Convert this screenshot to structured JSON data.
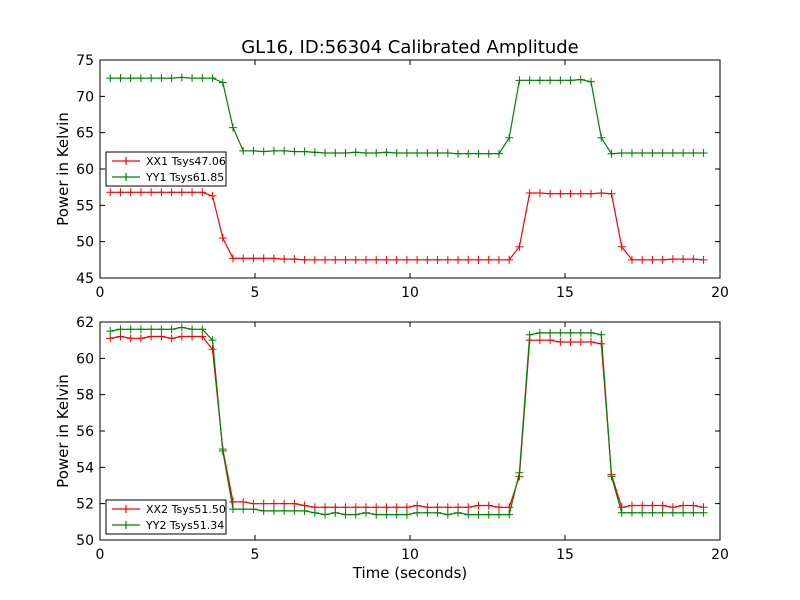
{
  "title": "GL16, ID:56304 Calibrated Amplitude",
  "chart_data": [
    {
      "type": "line",
      "ylabel": "Power in Kelvin",
      "xlabel": "",
      "xlim": [
        0,
        20
      ],
      "ylim": [
        45,
        75
      ],
      "xticks": [
        0,
        5,
        10,
        15,
        20
      ],
      "yticks": [
        45,
        50,
        55,
        60,
        65,
        70,
        75
      ],
      "legend_position": "center-left",
      "grid": false,
      "x": [
        0.33,
        0.66,
        0.99,
        1.32,
        1.65,
        1.98,
        2.31,
        2.64,
        2.97,
        3.3,
        3.63,
        3.96,
        4.29,
        4.62,
        4.95,
        5.28,
        5.61,
        5.94,
        6.27,
        6.6,
        6.93,
        7.26,
        7.59,
        7.92,
        8.25,
        8.58,
        8.91,
        9.24,
        9.57,
        9.9,
        10.23,
        10.56,
        10.89,
        11.22,
        11.55,
        11.88,
        12.21,
        12.54,
        12.87,
        13.2,
        13.53,
        13.86,
        14.19,
        14.52,
        14.85,
        15.18,
        15.51,
        15.84,
        16.17,
        16.5,
        16.83,
        17.16,
        17.49,
        17.82,
        18.15,
        18.48,
        18.81,
        19.14,
        19.47
      ],
      "series": [
        {
          "name": "XX1 Tsys47.06",
          "color": "#ff0000",
          "values": [
            56.8,
            56.8,
            56.8,
            56.8,
            56.8,
            56.8,
            56.8,
            56.8,
            56.8,
            56.8,
            56.3,
            50.5,
            47.7,
            47.7,
            47.7,
            47.7,
            47.7,
            47.6,
            47.6,
            47.5,
            47.5,
            47.5,
            47.5,
            47.5,
            47.5,
            47.5,
            47.5,
            47.5,
            47.5,
            47.5,
            47.5,
            47.5,
            47.5,
            47.5,
            47.5,
            47.5,
            47.5,
            47.5,
            47.5,
            47.5,
            49.3,
            56.7,
            56.7,
            56.6,
            56.6,
            56.6,
            56.6,
            56.6,
            56.7,
            56.6,
            49.3,
            47.5,
            47.5,
            47.5,
            47.5,
            47.6,
            47.6,
            47.6,
            47.5
          ]
        },
        {
          "name": "YY1 Tsys61.85",
          "color": "#008000",
          "values": [
            72.5,
            72.5,
            72.5,
            72.5,
            72.5,
            72.5,
            72.5,
            72.6,
            72.5,
            72.5,
            72.5,
            71.9,
            65.7,
            62.5,
            62.5,
            62.4,
            62.5,
            62.5,
            62.4,
            62.4,
            62.3,
            62.2,
            62.2,
            62.2,
            62.3,
            62.2,
            62.2,
            62.3,
            62.2,
            62.2,
            62.2,
            62.2,
            62.2,
            62.2,
            62.1,
            62.1,
            62.1,
            62.1,
            62.1,
            64.3,
            72.2,
            72.2,
            72.2,
            72.2,
            72.2,
            72.2,
            72.3,
            72.0,
            64.3,
            62.1,
            62.2,
            62.2,
            62.2,
            62.2,
            62.2,
            62.2,
            62.2,
            62.2,
            62.2
          ]
        }
      ]
    },
    {
      "type": "line",
      "ylabel": "Power in Kelvin",
      "xlabel": "Time (seconds)",
      "xlim": [
        0,
        20
      ],
      "ylim": [
        50,
        62
      ],
      "xticks": [
        0,
        5,
        10,
        15,
        20
      ],
      "yticks": [
        50,
        52,
        54,
        56,
        58,
        60,
        62
      ],
      "legend_position": "lower-left",
      "grid": false,
      "x": [
        0.33,
        0.66,
        0.99,
        1.32,
        1.65,
        1.98,
        2.31,
        2.64,
        2.97,
        3.3,
        3.63,
        3.96,
        4.29,
        4.62,
        4.95,
        5.28,
        5.61,
        5.94,
        6.27,
        6.6,
        6.93,
        7.26,
        7.59,
        7.92,
        8.25,
        8.58,
        8.91,
        9.24,
        9.57,
        9.9,
        10.23,
        10.56,
        10.89,
        11.22,
        11.55,
        11.88,
        12.21,
        12.54,
        12.87,
        13.2,
        13.53,
        13.86,
        14.19,
        14.52,
        14.85,
        15.18,
        15.51,
        15.84,
        16.17,
        16.5,
        16.83,
        17.16,
        17.49,
        17.82,
        18.15,
        18.48,
        18.81,
        19.14,
        19.47
      ],
      "series": [
        {
          "name": "XX2 Tsys51.50",
          "color": "#ff0000",
          "values": [
            61.1,
            61.2,
            61.1,
            61.1,
            61.2,
            61.2,
            61.1,
            61.2,
            61.2,
            61.2,
            60.5,
            55.0,
            52.1,
            52.1,
            52.0,
            52.0,
            52.0,
            52.0,
            52.0,
            51.9,
            51.8,
            51.8,
            51.8,
            51.8,
            51.8,
            51.8,
            51.8,
            51.8,
            51.8,
            51.8,
            51.9,
            51.8,
            51.8,
            51.8,
            51.8,
            51.8,
            51.9,
            51.9,
            51.8,
            51.8,
            53.5,
            61.0,
            61.0,
            61.0,
            60.9,
            60.9,
            60.9,
            60.9,
            60.8,
            53.6,
            51.8,
            51.9,
            51.9,
            51.9,
            51.9,
            51.8,
            51.9,
            51.9,
            51.8
          ]
        },
        {
          "name": "YY2 Tsys51.34",
          "color": "#008000",
          "values": [
            61.5,
            61.6,
            61.6,
            61.6,
            61.6,
            61.6,
            61.6,
            61.7,
            61.6,
            61.6,
            61.0,
            54.9,
            51.7,
            51.7,
            51.7,
            51.6,
            51.6,
            51.6,
            51.6,
            51.6,
            51.5,
            51.4,
            51.5,
            51.4,
            51.4,
            51.5,
            51.4,
            51.4,
            51.4,
            51.4,
            51.5,
            51.5,
            51.5,
            51.4,
            51.5,
            51.4,
            51.4,
            51.4,
            51.4,
            51.4,
            53.7,
            61.3,
            61.4,
            61.4,
            61.4,
            61.4,
            61.4,
            61.4,
            61.3,
            53.5,
            51.5,
            51.5,
            51.5,
            51.5,
            51.5,
            51.5,
            51.5,
            51.5,
            51.5
          ]
        }
      ]
    }
  ]
}
